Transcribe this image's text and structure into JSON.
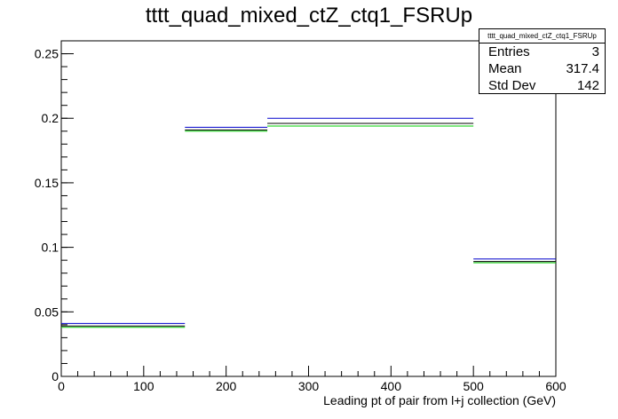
{
  "title": "tttt_quad_mixed_ctZ_ctq1_FSRUp",
  "stats": {
    "name": "tttt_quad_mixed_ctZ_ctq1_FSRUp",
    "rows": [
      {
        "label": "Entries",
        "value": "3"
      },
      {
        "label": "Mean",
        "value": "317.4"
      },
      {
        "label": "Std Dev",
        "value": "142"
      }
    ]
  },
  "colors": {
    "blue": "#0000cc",
    "green": "#00cc00",
    "black": "#000000"
  },
  "chart_data": {
    "type": "histogram",
    "title": "tttt_quad_mixed_ctZ_ctq1_FSRUp",
    "xlabel": "Leading pt of pair from l+j collection (GeV)",
    "ylabel": "",
    "xlim": [
      0,
      600
    ],
    "ylim": [
      0,
      0.26
    ],
    "bins": [
      [
        0,
        150
      ],
      [
        150,
        250
      ],
      [
        250,
        500
      ],
      [
        500,
        600
      ]
    ],
    "x_ticks": [
      "0",
      "100",
      "200",
      "300",
      "400",
      "500",
      "600"
    ],
    "y_ticks": [
      "0",
      "0.05",
      "0.1",
      "0.15",
      "0.2",
      "0.25"
    ],
    "series": [
      {
        "color": "blue",
        "values": [
          0.041,
          0.193,
          0.2,
          0.091
        ]
      },
      {
        "color": "black",
        "values": [
          0.039,
          0.191,
          0.196,
          0.089
        ]
      },
      {
        "color": "green",
        "values": [
          0.038,
          0.19,
          0.194,
          0.088
        ]
      }
    ]
  }
}
